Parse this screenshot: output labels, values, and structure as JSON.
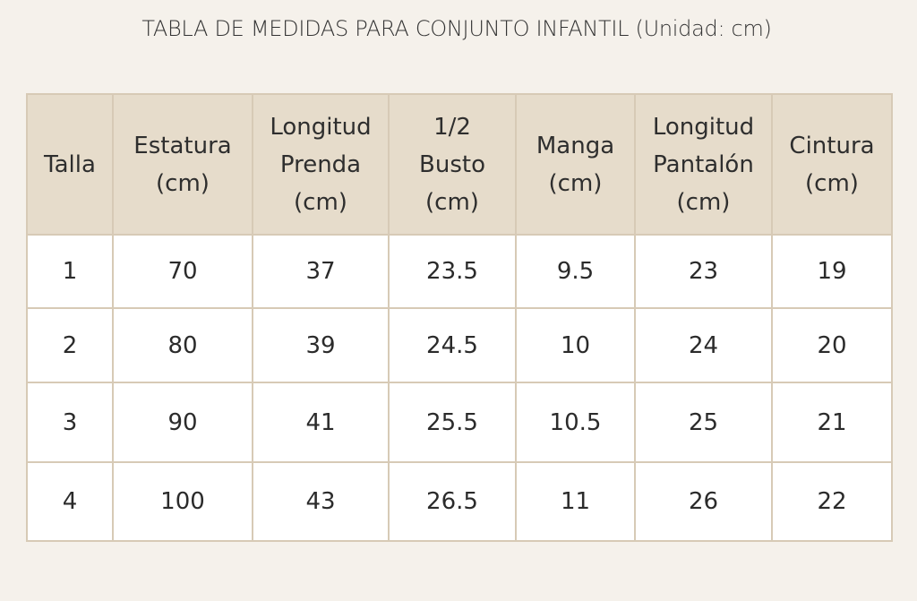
{
  "header": {
    "title": "TABLA DE MEDIDAS PARA CONJUNTO INFANTIL (Unidad: cm)"
  },
  "table": {
    "columns": [
      "Talla",
      "Estatura\n(cm)",
      "Longitud\nPrenda\n(cm)",
      "1/2\nBusto\n(cm)",
      "Manga\n(cm)",
      "Longitud\nPantalón\n(cm)",
      "Cintura\n(cm)"
    ],
    "rows": [
      [
        "1",
        "70",
        "37",
        "23.5",
        "9.5",
        "23",
        "19"
      ],
      [
        "2",
        "80",
        "39",
        "24.5",
        "10",
        "24",
        "20"
      ],
      [
        "3",
        "90",
        "41",
        "25.5",
        "10.5",
        "25",
        "21"
      ],
      [
        "4",
        "100",
        "43",
        "26.5",
        "11",
        "26",
        "22"
      ]
    ]
  }
}
